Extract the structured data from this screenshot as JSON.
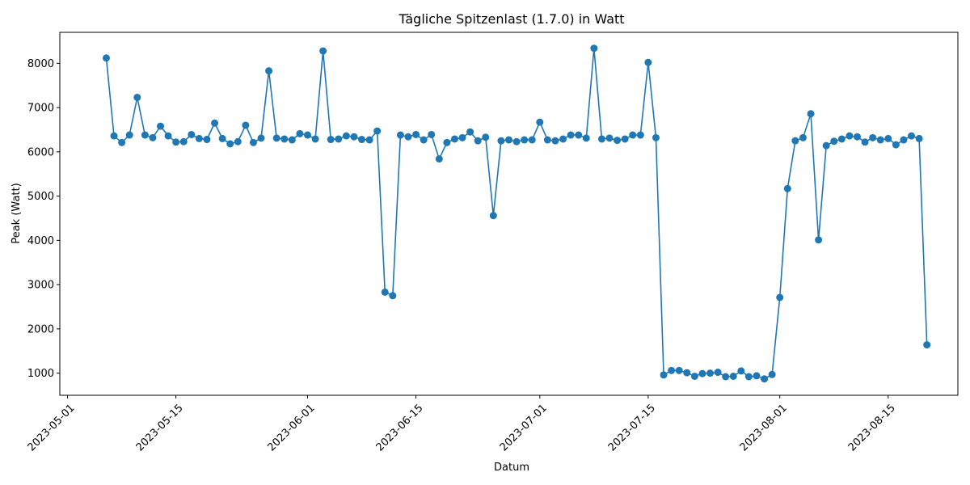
{
  "chart_data": {
    "type": "line",
    "title": "Tägliche Spitzenlast (1.7.0) in Watt",
    "xlabel": "Datum",
    "ylabel": "Peak (Watt)",
    "x_ticks": [
      "2023-05-01",
      "2023-05-15",
      "2023-06-01",
      "2023-06-15",
      "2023-07-01",
      "2023-07-15",
      "2023-08-01",
      "2023-08-15"
    ],
    "y_ticks": [
      1000,
      2000,
      3000,
      4000,
      5000,
      6000,
      7000,
      8000
    ],
    "xlim": [
      "2023-04-30",
      "2023-08-24"
    ],
    "ylim": [
      500,
      8700
    ],
    "grid": false,
    "color": "#1f77b4",
    "series": [
      {
        "x": [
          "2023-05-06",
          "2023-05-07",
          "2023-05-08",
          "2023-05-09",
          "2023-05-10",
          "2023-05-11",
          "2023-05-12",
          "2023-05-13",
          "2023-05-14",
          "2023-05-15",
          "2023-05-16",
          "2023-05-17",
          "2023-05-18",
          "2023-05-19",
          "2023-05-20",
          "2023-05-21",
          "2023-05-22",
          "2023-05-23",
          "2023-05-24",
          "2023-05-25",
          "2023-05-26",
          "2023-05-27",
          "2023-05-28",
          "2023-05-29",
          "2023-05-30",
          "2023-05-31",
          "2023-06-01",
          "2023-06-02",
          "2023-06-03",
          "2023-06-04",
          "2023-06-05",
          "2023-06-06",
          "2023-06-07",
          "2023-06-08",
          "2023-06-09",
          "2023-06-10",
          "2023-06-11",
          "2023-06-12",
          "2023-06-13",
          "2023-06-14",
          "2023-06-15",
          "2023-06-16",
          "2023-06-17",
          "2023-06-18",
          "2023-06-19",
          "2023-06-20",
          "2023-06-21",
          "2023-06-22",
          "2023-06-23",
          "2023-06-24",
          "2023-06-25",
          "2023-06-26",
          "2023-06-27",
          "2023-06-28",
          "2023-06-29",
          "2023-06-30",
          "2023-07-01",
          "2023-07-02",
          "2023-07-03",
          "2023-07-04",
          "2023-07-05",
          "2023-07-06",
          "2023-07-07",
          "2023-07-08",
          "2023-07-09",
          "2023-07-10",
          "2023-07-11",
          "2023-07-12",
          "2023-07-13",
          "2023-07-14",
          "2023-07-15",
          "2023-07-16",
          "2023-07-17",
          "2023-07-18",
          "2023-07-19",
          "2023-07-20",
          "2023-07-21",
          "2023-07-22",
          "2023-07-23",
          "2023-07-24",
          "2023-07-25",
          "2023-07-26",
          "2023-07-27",
          "2023-07-28",
          "2023-07-29",
          "2023-07-30",
          "2023-07-31",
          "2023-08-01",
          "2023-08-02",
          "2023-08-03",
          "2023-08-04",
          "2023-08-05",
          "2023-08-06",
          "2023-08-07",
          "2023-08-08",
          "2023-08-09",
          "2023-08-10",
          "2023-08-11",
          "2023-08-12",
          "2023-08-13",
          "2023-08-14",
          "2023-08-15",
          "2023-08-16",
          "2023-08-17",
          "2023-08-18",
          "2023-08-19",
          "2023-08-20"
        ],
        "y": [
          8120,
          6360,
          6210,
          6380,
          7230,
          6380,
          6320,
          6580,
          6360,
          6220,
          6230,
          6390,
          6300,
          6280,
          6650,
          6300,
          6180,
          6230,
          6600,
          6210,
          6310,
          7830,
          6310,
          6290,
          6270,
          6410,
          6380,
          6290,
          8280,
          6280,
          6290,
          6360,
          6340,
          6280,
          6270,
          6470,
          2830,
          2750,
          6380,
          6340,
          6390,
          6270,
          6390,
          5840,
          6210,
          6290,
          6320,
          6450,
          6250,
          6330,
          4560,
          6250,
          6270,
          6230,
          6270,
          6270,
          6670,
          6270,
          6250,
          6290,
          6380,
          6380,
          6310,
          8340,
          6290,
          6310,
          6260,
          6290,
          6380,
          6380,
          8020,
          6320,
          960,
          1060,
          1060,
          1010,
          930,
          990,
          1000,
          1020,
          920,
          930,
          1050,
          920,
          940,
          870,
          970,
          2710,
          5170,
          6250,
          6320,
          6860,
          4010,
          6140,
          6240,
          6290,
          6360,
          6340,
          6220,
          6320,
          6270,
          6300,
          6160,
          6270,
          6360,
          6300,
          1640
        ]
      }
    ]
  }
}
